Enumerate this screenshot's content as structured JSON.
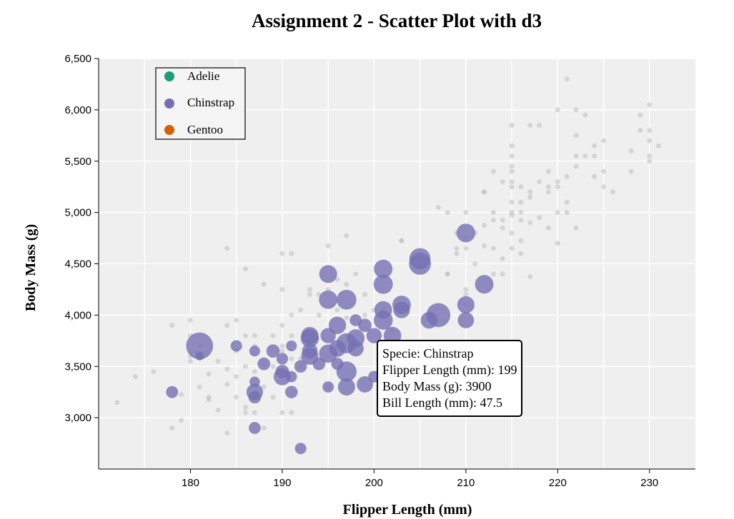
{
  "chart_data": {
    "type": "scatter",
    "title": "Assignment 2 - Scatter Plot with d3",
    "xlabel": "Flipper Length (mm)",
    "ylabel": "Body Mass (g)",
    "xlim": [
      170,
      235
    ],
    "ylim": [
      2500,
      6500
    ],
    "x_ticks": [
      180,
      190,
      200,
      210,
      220,
      230
    ],
    "y_ticks": [
      3000,
      3500,
      4000,
      4500,
      5000,
      5500,
      6000,
      6500
    ],
    "y_tick_labels": [
      "3,000",
      "3,500",
      "4,000",
      "4,500",
      "5,000",
      "5,500",
      "6,000",
      "6,500"
    ],
    "grid": true,
    "legend_position": "top-left",
    "legend": [
      {
        "name": "Adelie",
        "color": "#1b9e77"
      },
      {
        "name": "Chinstrap",
        "color": "#7570b3"
      },
      {
        "name": "Gentoo",
        "color": "#d95f02"
      }
    ],
    "highlighted_series": "Chinstrap",
    "series": [
      {
        "name": "Chinstrap",
        "color": "#7570b3",
        "size_encoding": "Bill Length (mm)",
        "points": [
          [
            181,
            3700,
            58.0
          ],
          [
            181,
            3600,
            42.5
          ],
          [
            178,
            3250,
            46.5
          ],
          [
            185,
            3700,
            46.0
          ],
          [
            187,
            3650,
            45.5
          ],
          [
            187,
            3350,
            45.2
          ],
          [
            187,
            3250,
            50.0
          ],
          [
            187,
            3200,
            46.9
          ],
          [
            187,
            2900,
            46.4
          ],
          [
            188,
            3525,
            47.0
          ],
          [
            189,
            3650,
            47.5
          ],
          [
            190,
            3575,
            46.1
          ],
          [
            190,
            3450,
            47.6
          ],
          [
            190,
            3400,
            50.5
          ],
          [
            191,
            3250,
            46.8
          ],
          [
            191,
            3400,
            45.7
          ],
          [
            191,
            3700,
            45.5
          ],
          [
            192,
            2700,
            46.0
          ],
          [
            192,
            3500,
            46.9
          ],
          [
            193,
            3800,
            50.6
          ],
          [
            193,
            3650,
            49.2
          ],
          [
            193,
            3775,
            51.3
          ],
          [
            193,
            3600,
            50.5
          ],
          [
            194,
            3525,
            47.0
          ],
          [
            195,
            3800,
            49.0
          ],
          [
            195,
            3625,
            51.3
          ],
          [
            195,
            3300,
            45.9
          ],
          [
            195,
            4400,
            51.0
          ],
          [
            195,
            4150,
            51.4
          ],
          [
            196,
            3900,
            50.7
          ],
          [
            196,
            3525,
            46.5
          ],
          [
            196,
            3675,
            50.2
          ],
          [
            197,
            3725,
            52.7
          ],
          [
            197,
            3300,
            50.5
          ],
          [
            197,
            3450,
            52.8
          ],
          [
            197,
            4150,
            52.5
          ],
          [
            198,
            3775,
            50.9
          ],
          [
            198,
            3675,
            49.5
          ],
          [
            198,
            3950,
            46.4
          ],
          [
            199,
            3900,
            47.5
          ],
          [
            199,
            3325,
            49.8
          ],
          [
            200,
            3400,
            46.2
          ],
          [
            200,
            3800,
            49.0
          ],
          [
            201,
            4050,
            50.9
          ],
          [
            201,
            4450,
            51.5
          ],
          [
            201,
            4300,
            52.0
          ],
          [
            201,
            3950,
            51.9
          ],
          [
            202,
            3800,
            50.8
          ],
          [
            203,
            4100,
            51.4
          ],
          [
            203,
            4050,
            50.0
          ],
          [
            205,
            4550,
            53.5
          ],
          [
            205,
            4500,
            54.2
          ],
          [
            206,
            3950,
            50.2
          ],
          [
            207,
            4000,
            55.8
          ],
          [
            210,
            4800,
            51.7
          ],
          [
            210,
            4100,
            50.5
          ],
          [
            210,
            3950,
            49.7
          ],
          [
            212,
            4300,
            51.5
          ]
        ]
      },
      {
        "name": "Adelie",
        "color": "#1b9e77",
        "points": [
          [
            172,
            3150
          ],
          [
            174,
            3400
          ],
          [
            176,
            3450
          ],
          [
            178,
            3900
          ],
          [
            178,
            2900
          ],
          [
            179,
            2975
          ],
          [
            180,
            3950
          ],
          [
            180,
            3800
          ],
          [
            180,
            3600
          ],
          [
            180,
            3550
          ],
          [
            181,
            3625
          ],
          [
            181,
            3300
          ],
          [
            182,
            3425
          ],
          [
            182,
            3175
          ],
          [
            182,
            3200
          ],
          [
            183,
            3550
          ],
          [
            183,
            3075
          ],
          [
            184,
            3900
          ],
          [
            184,
            3325
          ],
          [
            184,
            2850
          ],
          [
            184,
            3475
          ],
          [
            184,
            4650
          ],
          [
            185,
            3400
          ],
          [
            185,
            3200
          ],
          [
            185,
            3650
          ],
          [
            185,
            3950
          ],
          [
            186,
            3800
          ],
          [
            186,
            3500
          ],
          [
            186,
            3100
          ],
          [
            186,
            4450
          ],
          [
            186,
            3050
          ],
          [
            187,
            3450
          ],
          [
            187,
            3700
          ],
          [
            187,
            3800
          ],
          [
            187,
            3050
          ],
          [
            188,
            3300
          ],
          [
            188,
            2900
          ],
          [
            188,
            3525
          ],
          [
            188,
            4300
          ],
          [
            189,
            3200
          ],
          [
            189,
            3500
          ],
          [
            189,
            3800
          ],
          [
            190,
            3900
          ],
          [
            190,
            3450
          ],
          [
            190,
            4250
          ],
          [
            190,
            3050
          ],
          [
            190,
            3700
          ],
          [
            190,
            4600
          ],
          [
            190,
            3650
          ],
          [
            191,
            3800
          ],
          [
            191,
            4000
          ],
          [
            191,
            3050
          ],
          [
            191,
            3575
          ],
          [
            191,
            4600
          ],
          [
            192,
            3500
          ],
          [
            192,
            3575
          ],
          [
            192,
            4050
          ],
          [
            193,
            4200
          ],
          [
            193,
            4250
          ],
          [
            194,
            4000
          ],
          [
            194,
            4200
          ],
          [
            195,
            3300
          ],
          [
            195,
            4250
          ],
          [
            195,
            4675
          ],
          [
            195,
            3600
          ],
          [
            196,
            4350
          ],
          [
            196,
            4050
          ],
          [
            196,
            3700
          ],
          [
            197,
            4775
          ],
          [
            197,
            3975
          ],
          [
            197,
            4300
          ],
          [
            198,
            3750
          ],
          [
            198,
            4400
          ],
          [
            199,
            4200
          ],
          [
            199,
            4000
          ],
          [
            200,
            4050
          ],
          [
            201,
            4050
          ],
          [
            202,
            3850
          ],
          [
            203,
            4725
          ],
          [
            210,
            4250
          ],
          [
            208,
            4400
          ],
          [
            212,
            4675
          ],
          [
            179,
            3225
          ],
          [
            181,
            3700
          ]
        ]
      },
      {
        "name": "Gentoo",
        "color": "#d95f02",
        "points": [
          [
            203,
            4725
          ],
          [
            207,
            5050
          ],
          [
            208,
            4400
          ],
          [
            208,
            5000
          ],
          [
            209,
            4600
          ],
          [
            209,
            4650
          ],
          [
            209,
            4800
          ],
          [
            210,
            4650
          ],
          [
            210,
            4750
          ],
          [
            210,
            5000
          ],
          [
            210,
            4200
          ],
          [
            210,
            4100
          ],
          [
            211,
            4800
          ],
          [
            211,
            4500
          ],
          [
            212,
            4875
          ],
          [
            212,
            5200
          ],
          [
            213,
            4400
          ],
          [
            213,
            5000
          ],
          [
            213,
            4925
          ],
          [
            213,
            4650
          ],
          [
            214,
            4550
          ],
          [
            214,
            4850
          ],
          [
            214,
            4400
          ],
          [
            214,
            5300
          ],
          [
            214,
            4925
          ],
          [
            215,
            4650
          ],
          [
            215,
            5000
          ],
          [
            215,
            5550
          ],
          [
            215,
            4800
          ],
          [
            215,
            5100
          ],
          [
            215,
            5850
          ],
          [
            215,
            4975
          ],
          [
            215,
            5450
          ],
          [
            215,
            5250
          ],
          [
            215,
            5400
          ],
          [
            215,
            5650
          ],
          [
            215,
            5300
          ],
          [
            216,
            4600
          ],
          [
            216,
            5000
          ],
          [
            216,
            4725
          ],
          [
            216,
            5250
          ],
          [
            216,
            4925
          ],
          [
            216,
            5100
          ],
          [
            217,
            4375
          ],
          [
            217,
            5200
          ],
          [
            217,
            4900
          ],
          [
            217,
            5850
          ],
          [
            218,
            5300
          ],
          [
            218,
            4950
          ],
          [
            219,
            4850
          ],
          [
            219,
            5250
          ],
          [
            219,
            5200
          ],
          [
            220,
            5300
          ],
          [
            220,
            5000
          ],
          [
            220,
            6000
          ],
          [
            220,
            5250
          ],
          [
            221,
            5350
          ],
          [
            221,
            6300
          ],
          [
            221,
            5000
          ],
          [
            222,
            5450
          ],
          [
            222,
            5750
          ],
          [
            222,
            5550
          ],
          [
            222,
            6000
          ],
          [
            223,
            5550
          ],
          [
            223,
            5950
          ],
          [
            224,
            5650
          ],
          [
            224,
            5350
          ],
          [
            225,
            5700
          ],
          [
            225,
            5400
          ],
          [
            225,
            5250
          ],
          [
            226,
            5200
          ],
          [
            228,
            5600
          ],
          [
            228,
            5400
          ],
          [
            229,
            5950
          ],
          [
            229,
            5800
          ],
          [
            230,
            5700
          ],
          [
            230,
            5800
          ],
          [
            230,
            6050
          ],
          [
            230,
            5500
          ],
          [
            230,
            5550
          ],
          [
            231,
            5650
          ],
          [
            212,
            5200
          ],
          [
            213,
            5400
          ],
          [
            221,
            5100
          ],
          [
            224,
            5550
          ],
          [
            222,
            4850
          ],
          [
            218,
            5850
          ],
          [
            219,
            5400
          ],
          [
            220,
            4700
          ],
          [
            217,
            5150
          ]
        ]
      }
    ]
  },
  "tooltip": {
    "line1": "Specie: Chinstrap",
    "line2": "Flipper Length (mm): 199",
    "line3": "Body Mass (g): 3900",
    "line4": "Bill Length (mm): 47.5"
  }
}
